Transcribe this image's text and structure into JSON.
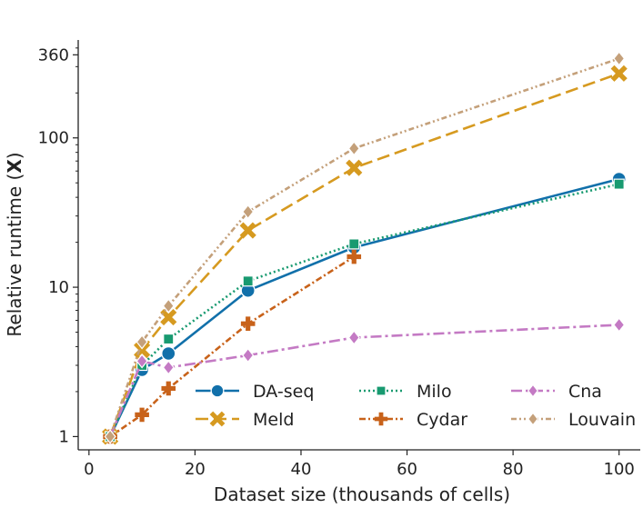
{
  "chart_data": {
    "type": "line",
    "xlabel": "Dataset size (thousands of cells)",
    "ylabel_prefix": "Relative runtime (",
    "ylabel_bold": "X",
    "ylabel_suffix": ")",
    "yscale": "log",
    "xlim": [
      -1,
      104
    ],
    "ylim": [
      0.85,
      440
    ],
    "x_ticks": [
      0,
      20,
      40,
      60,
      80,
      100
    ],
    "x_tick_labels": [
      "0",
      "20",
      "40",
      "60",
      "80",
      "100"
    ],
    "y_ticks": [
      1,
      10,
      100,
      360
    ],
    "y_tick_labels": [
      "1",
      "10",
      "100",
      "360"
    ],
    "x": [
      4,
      10,
      15,
      30,
      50,
      100
    ],
    "series": [
      {
        "name": "DA-seq",
        "color": "#1170aa",
        "dash": "",
        "marker": "circle",
        "values": [
          1,
          2.8,
          3.6,
          9.5,
          18.5,
          53
        ]
      },
      {
        "name": "Meld",
        "color": "#d69a20",
        "dash": "14 6",
        "marker": "x",
        "values": [
          1,
          3.8,
          6.3,
          24,
          63,
          270
        ]
      },
      {
        "name": "Milo",
        "color": "#189a70",
        "dash": "2 3",
        "marker": "square",
        "values": [
          1,
          3.0,
          4.5,
          11,
          19.5,
          49
        ]
      },
      {
        "name": "Cydar",
        "color": "#c8621a",
        "dash": "7 3 2 3",
        "marker": "plus",
        "values": [
          1,
          1.4,
          2.1,
          5.7,
          16,
          null
        ]
      },
      {
        "name": "Cna",
        "color": "#c47ac4",
        "dash": "12 4 3 4",
        "marker": "diamond",
        "values": [
          1,
          3.2,
          2.9,
          3.5,
          4.6,
          5.6
        ]
      },
      {
        "name": "Louvain",
        "color": "#c4a07a",
        "dash": "6 3 2 3 2 3",
        "marker": "diamond",
        "values": [
          1,
          4.3,
          7.5,
          32,
          85,
          340
        ]
      }
    ],
    "legend": {
      "location": "lower-right",
      "columns": 3,
      "frame": false
    }
  }
}
